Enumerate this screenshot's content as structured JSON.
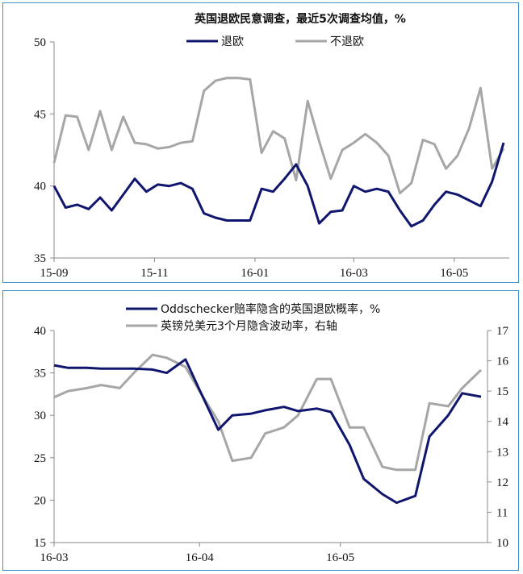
{
  "colors": {
    "navy": "#10166e",
    "grey": "#a6a6a6",
    "frame": "#3a8fc8"
  },
  "chart_data": [
    {
      "type": "line",
      "title": "英国退欧民意调查，最近5次调查均值，%",
      "ylim": [
        35,
        50
      ],
      "yticks": [
        "35",
        "40",
        "45",
        "50"
      ],
      "xticks": [
        "15-09",
        "15-11",
        "16-01",
        "16-03",
        "16-05"
      ],
      "legend": "top",
      "x": [
        "2015-09-01",
        "2015-09-08",
        "2015-09-15",
        "2015-09-22",
        "2015-09-29",
        "2015-10-06",
        "2015-10-13",
        "2015-10-20",
        "2015-10-27",
        "2015-11-03",
        "2015-11-10",
        "2015-11-17",
        "2015-11-24",
        "2015-12-01",
        "2015-12-08",
        "2015-12-15",
        "2015-12-22",
        "2015-12-29",
        "2016-01-05",
        "2016-01-12",
        "2016-01-19",
        "2016-01-26",
        "2016-02-02",
        "2016-02-09",
        "2016-02-16",
        "2016-02-23",
        "2016-03-01",
        "2016-03-08",
        "2016-03-15",
        "2016-03-22",
        "2016-03-29",
        "2016-04-05",
        "2016-04-12",
        "2016-04-19",
        "2016-04-26",
        "2016-05-03",
        "2016-05-10",
        "2016-05-17",
        "2016-05-24",
        "2016-05-31"
      ],
      "series": [
        {
          "name": "退欧",
          "values": [
            40.0,
            38.5,
            38.7,
            38.4,
            39.2,
            38.3,
            39.4,
            40.5,
            39.6,
            40.1,
            40.0,
            40.2,
            39.8,
            38.1,
            37.8,
            37.6,
            37.6,
            37.6,
            39.8,
            39.6,
            40.5,
            41.5,
            40.0,
            37.4,
            38.2,
            38.3,
            40.0,
            39.6,
            39.8,
            39.6,
            38.3,
            37.2,
            37.6,
            38.7,
            39.6,
            39.4,
            39.0,
            38.6,
            40.3,
            43.0
          ]
        },
        {
          "name": "不退欧",
          "values": [
            41.6,
            44.9,
            44.8,
            42.5,
            45.2,
            42.5,
            44.8,
            43.0,
            42.9,
            42.6,
            42.7,
            43.0,
            43.1,
            46.6,
            47.3,
            47.5,
            47.5,
            47.4,
            42.3,
            43.8,
            43.3,
            40.4,
            45.9,
            43.1,
            40.5,
            42.5,
            43.0,
            43.6,
            43.0,
            42.1,
            39.5,
            40.2,
            43.2,
            42.9,
            41.2,
            42.1,
            44.0,
            46.8,
            41.2,
            42.6
          ]
        }
      ]
    },
    {
      "type": "line",
      "ylim": [
        15,
        40
      ],
      "yticks": [
        "15",
        "20",
        "25",
        "30",
        "35",
        "40"
      ],
      "y2lim": [
        10,
        17
      ],
      "y2ticks": [
        "10",
        "11",
        "12",
        "13",
        "14",
        "15",
        "16",
        "17"
      ],
      "xticks": [
        "16-03",
        "16-04",
        "16-05"
      ],
      "legend": "top",
      "x": [
        "2016-03-01",
        "2016-03-04",
        "2016-03-08",
        "2016-03-11",
        "2016-03-15",
        "2016-03-18",
        "2016-03-22",
        "2016-03-25",
        "2016-03-29",
        "2016-04-01",
        "2016-04-05",
        "2016-04-08",
        "2016-04-12",
        "2016-04-15",
        "2016-04-19",
        "2016-04-22",
        "2016-04-26",
        "2016-04-29",
        "2016-05-03",
        "2016-05-06",
        "2016-05-10",
        "2016-05-13",
        "2016-05-17",
        "2016-05-20",
        "2016-05-24",
        "2016-05-27",
        "2016-05-31"
      ],
      "series": [
        {
          "name": "Oddschecker赔率隐含的英国退欧概率，%",
          "axis": "left",
          "values": [
            35.9,
            35.6,
            35.6,
            35.5,
            35.5,
            35.5,
            35.4,
            35.0,
            36.6,
            33.0,
            28.3,
            30.0,
            30.2,
            30.6,
            31.0,
            30.5,
            30.8,
            30.4,
            26.5,
            22.5,
            20.7,
            19.7,
            20.5,
            27.5,
            30.0,
            32.6,
            32.2
          ]
        },
        {
          "name": "英镑兑美元3个月隐含波动率，右轴",
          "axis": "right",
          "values": [
            14.8,
            15.0,
            15.1,
            15.2,
            15.1,
            15.6,
            16.2,
            16.1,
            15.8,
            15.0,
            14.0,
            12.7,
            12.8,
            13.6,
            13.8,
            14.2,
            15.4,
            15.4,
            13.8,
            13.8,
            12.5,
            12.4,
            12.4,
            14.6,
            14.5,
            15.1,
            15.7
          ]
        }
      ]
    }
  ]
}
